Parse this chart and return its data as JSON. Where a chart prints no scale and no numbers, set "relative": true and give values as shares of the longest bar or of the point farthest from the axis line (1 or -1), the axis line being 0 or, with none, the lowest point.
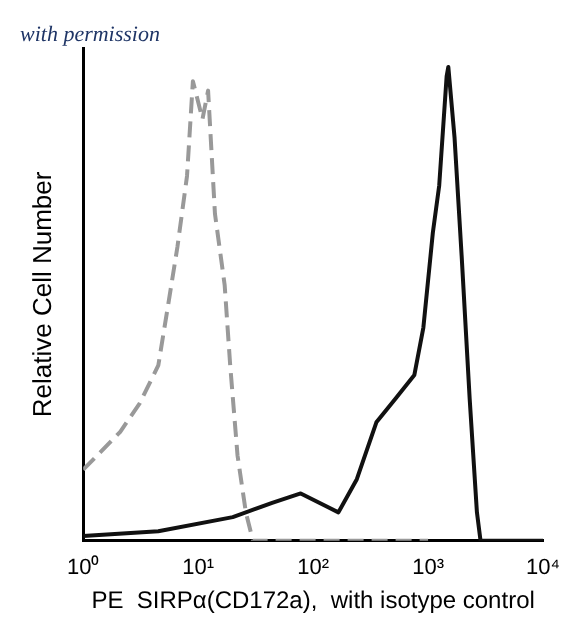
{
  "chart_data": {
    "type": "line",
    "xlabel": "PE  SIRPα(CD172a),  with isotype control",
    "ylabel": "Relative Cell Number",
    "annotations": [
      "with permission"
    ],
    "relative": true,
    "log": "x",
    "xlim": [
      1,
      10000
    ],
    "xticks": [
      {
        "value": 1,
        "label": "10⁰"
      },
      {
        "value": 10,
        "label": "10¹"
      },
      {
        "value": 100,
        "label": "10²"
      },
      {
        "value": 1000,
        "label": "10³"
      },
      {
        "value": 10000,
        "label": "10⁴"
      }
    ],
    "tick_labels": "x",
    "grid": false,
    "legend": false,
    "series": [
      {
        "color": "#999999",
        "line_style": "dashed",
        "x": [
          1,
          2.1,
          3.1,
          4.5,
          5.5,
          6.6,
          8,
          9,
          10.9,
          12.2,
          14,
          17,
          19,
          22,
          26,
          30,
          100,
          1000
        ],
        "values": [
          0.15,
          0.23,
          0.29,
          0.37,
          0.5,
          0.62,
          0.77,
          0.97,
          0.89,
          0.95,
          0.69,
          0.54,
          0.37,
          0.18,
          0.06,
          0,
          0,
          0
        ]
      },
      {
        "color": "#111111",
        "line_style": "solid",
        "x": [
          1,
          4.5,
          20,
          44,
          78,
          166,
          240,
          355,
          520,
          760,
          910,
          1100,
          1250,
          1450,
          1500,
          1700,
          1960,
          2300,
          2660,
          2860,
          10000
        ],
        "values": [
          0.01,
          0.02,
          0.05,
          0.08,
          0.1,
          0.06,
          0.13,
          0.25,
          0.3,
          0.35,
          0.45,
          0.65,
          0.75,
          0.98,
          1,
          0.85,
          0.6,
          0.3,
          0.06,
          0,
          0
        ]
      }
    ]
  }
}
